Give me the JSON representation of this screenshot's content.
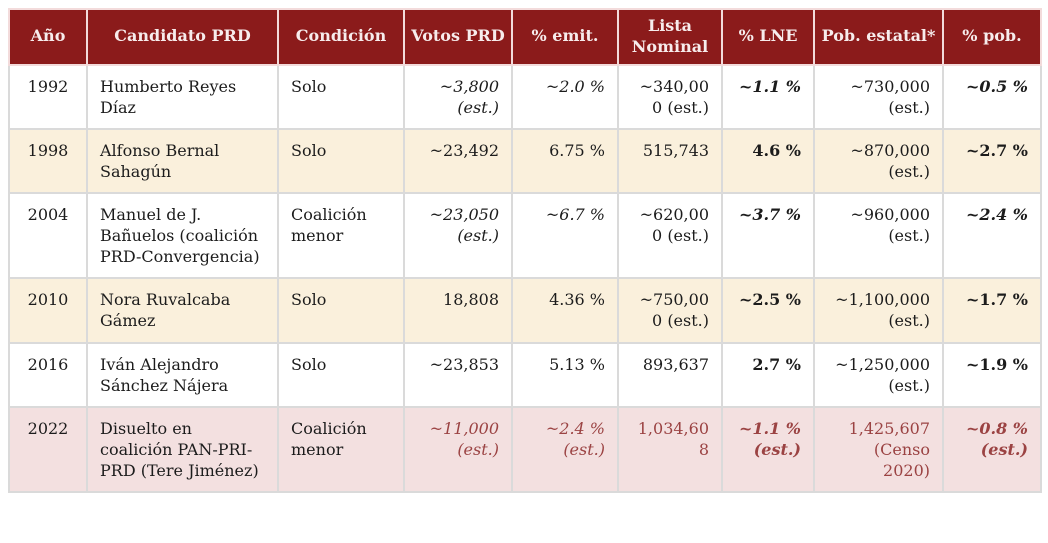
{
  "colors": {
    "header_bg": "#8b1b1b",
    "header_text": "#f7ecec",
    "row_cream": "#faf0dc",
    "row_highlight_pink": "#f3e0e0",
    "accent_red": "#9b4343",
    "body_border": "#dadada",
    "header_border": "#f3dbdb"
  },
  "table": {
    "columns": [
      {
        "key": "ano",
        "label": "Año"
      },
      {
        "key": "candidato-prd",
        "label": "Candidato PRD"
      },
      {
        "key": "condicion",
        "label": "Condición"
      },
      {
        "key": "votos-prd",
        "label": "Votos PRD"
      },
      {
        "key": "pct-emit",
        "label": "% emit."
      },
      {
        "key": "lista-nominal",
        "label": "Lista Nominal"
      },
      {
        "key": "pct-lne",
        "label": "% LNE"
      },
      {
        "key": "pob-estatal",
        "label": "Pob. estatal*"
      },
      {
        "key": "pct-pob",
        "label": "% pob."
      }
    ],
    "rows": [
      {
        "bg": "white",
        "cells": [
          {
            "text": "1992"
          },
          {
            "text": "Humberto Reyes Díaz"
          },
          {
            "text": "Solo"
          },
          {
            "text": "~3,800 (est.)",
            "italic": true
          },
          {
            "text": "~2.0 %",
            "italic": true
          },
          {
            "text": "~340,000 (est.)"
          },
          {
            "text": "~1.1 %",
            "italic": true,
            "bold": true
          },
          {
            "text": "~730,000 (est.)"
          },
          {
            "text": "~0.5 %",
            "italic": true,
            "bold": true
          }
        ]
      },
      {
        "bg": "cream",
        "cells": [
          {
            "text": "1998"
          },
          {
            "text": "Alfonso Bernal Sahagún"
          },
          {
            "text": "Solo"
          },
          {
            "text": "~23,492"
          },
          {
            "text": "6.75 %"
          },
          {
            "text": "515,743"
          },
          {
            "text": "4.6 %",
            "bold": true
          },
          {
            "text": "~870,000 (est.)"
          },
          {
            "text": "~2.7 %",
            "bold": true
          }
        ]
      },
      {
        "bg": "white",
        "cells": [
          {
            "text": "2004"
          },
          {
            "text": "Manuel de J. Bañuelos (coalición PRD-Convergencia)"
          },
          {
            "text": "Coalición menor"
          },
          {
            "text": "~23,050 (est.)",
            "italic": true
          },
          {
            "text": "~6.7 %",
            "italic": true
          },
          {
            "text": "~620,000 (est.)"
          },
          {
            "text": "~3.7 %",
            "italic": true,
            "bold": true
          },
          {
            "text": "~960,000 (est.)"
          },
          {
            "text": "~2.4 %",
            "italic": true,
            "bold": true
          }
        ]
      },
      {
        "bg": "cream",
        "cells": [
          {
            "text": "2010"
          },
          {
            "text": "Nora Ruvalcaba Gámez"
          },
          {
            "text": "Solo"
          },
          {
            "text": "18,808"
          },
          {
            "text": "4.36 %"
          },
          {
            "text": "~750,000 (est.)"
          },
          {
            "text": "~2.5 %",
            "bold": true
          },
          {
            "text": "~1,100,000 (est.)"
          },
          {
            "text": "~1.7 %",
            "bold": true
          }
        ]
      },
      {
        "bg": "white",
        "cells": [
          {
            "text": "2016"
          },
          {
            "text": "Iván Alejandro Sánchez Nájera"
          },
          {
            "text": "Solo"
          },
          {
            "text": "~23,853"
          },
          {
            "text": "5.13 %"
          },
          {
            "text": "893,637"
          },
          {
            "text": "2.7 %",
            "bold": true
          },
          {
            "text": "~1,250,000 (est.)"
          },
          {
            "text": "~1.9 %",
            "bold": true
          }
        ]
      },
      {
        "bg": "pink",
        "cells": [
          {
            "text": "2022"
          },
          {
            "text": "Disuelto en coalición PAN-PRI-PRD (Tere Jiménez)"
          },
          {
            "text": "Coalición menor"
          },
          {
            "text": "~11,000 (est.)",
            "italic": true,
            "red": true
          },
          {
            "text": "~2.4 % (est.)",
            "italic": true,
            "red": true
          },
          {
            "text": "1,034,608",
            "red": true
          },
          {
            "text": "~1.1 % (est.)",
            "italic": true,
            "bold": true,
            "red": true
          },
          {
            "text": "1,425,607 (Censo 2020)",
            "red": true
          },
          {
            "text": "~0.8 % (est.)",
            "italic": true,
            "bold": true,
            "red": true
          }
        ]
      }
    ]
  }
}
